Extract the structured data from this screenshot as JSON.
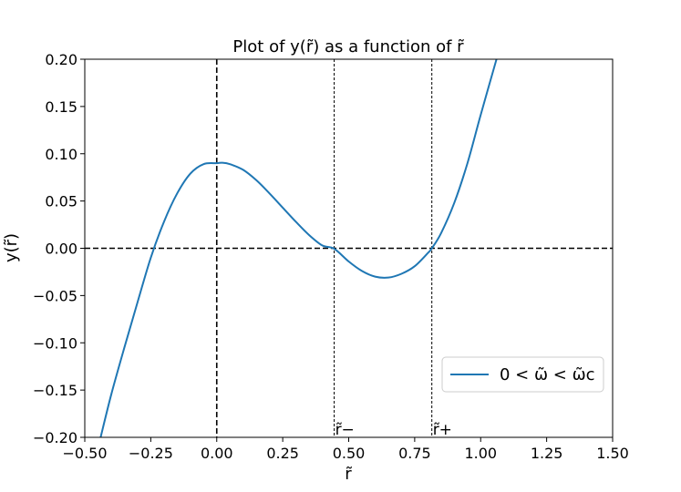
{
  "chart_data": {
    "type": "line",
    "title": "Plot of y(r̃) as a function of r̃",
    "xlabel": "r̃",
    "ylabel": "y(r̃)",
    "xlim": [
      -0.5,
      1.5
    ],
    "ylim": [
      -0.2,
      0.2
    ],
    "x_ticks": [
      -0.5,
      -0.25,
      0.0,
      0.25,
      0.5,
      0.75,
      1.0,
      1.25,
      1.5
    ],
    "x_tick_labels": [
      "−0.50",
      "−0.25",
      "0.00",
      "0.25",
      "0.50",
      "0.75",
      "1.00",
      "1.25",
      "1.50"
    ],
    "y_ticks": [
      -0.2,
      -0.15,
      -0.1,
      -0.05,
      0.0,
      0.05,
      0.1,
      0.15,
      0.2
    ],
    "y_tick_labels": [
      "−0.20",
      "−0.15",
      "−0.10",
      "−0.05",
      "0.00",
      "0.05",
      "0.10",
      "0.15",
      "0.20"
    ],
    "grid": false,
    "legend_position": "lower-right",
    "series": [
      {
        "name": "0 < ω̃ < ω̃c",
        "color": "#1f77b4",
        "x": [
          -0.44,
          -0.4,
          -0.35,
          -0.3,
          -0.25,
          -0.2,
          -0.15,
          -0.1,
          -0.05,
          0.0,
          0.02,
          0.05,
          0.1,
          0.15,
          0.2,
          0.25,
          0.3,
          0.35,
          0.4,
          0.445,
          0.5,
          0.55,
          0.6,
          0.65,
          0.7,
          0.75,
          0.8,
          0.815,
          0.85,
          0.9,
          0.95,
          1.0,
          1.06
        ],
        "y": [
          -0.2,
          -0.155,
          -0.105,
          -0.057,
          -0.01,
          0.028,
          0.058,
          0.079,
          0.089,
          0.09,
          0.0905,
          0.089,
          0.083,
          0.072,
          0.058,
          0.043,
          0.028,
          0.014,
          0.003,
          -0.0005,
          -0.014,
          -0.024,
          -0.03,
          -0.031,
          -0.027,
          -0.019,
          -0.005,
          0.0,
          0.016,
          0.048,
          0.09,
          0.141,
          0.2
        ]
      }
    ],
    "reference_lines": [
      {
        "orientation": "horizontal",
        "value": 0.0,
        "style": "dashed",
        "weight": "bold"
      },
      {
        "orientation": "vertical",
        "value": 0.0,
        "style": "dashed",
        "weight": "bold"
      },
      {
        "orientation": "vertical",
        "value": 0.445,
        "style": "dashed",
        "weight": "thin"
      },
      {
        "orientation": "vertical",
        "value": 0.815,
        "style": "dashed",
        "weight": "thin"
      }
    ],
    "annotations": [
      {
        "text": "r̃−",
        "x": 0.445,
        "y": -0.2
      },
      {
        "text": "r̃+",
        "x": 0.815,
        "y": -0.2
      }
    ]
  }
}
